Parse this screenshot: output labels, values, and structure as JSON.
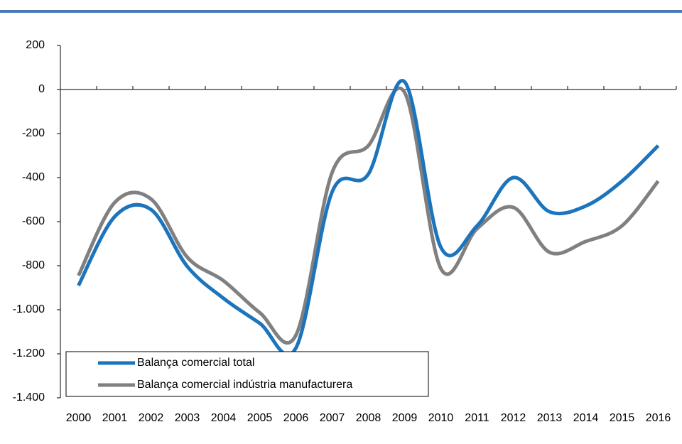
{
  "chart_data": {
    "type": "line",
    "categories": [
      "2000",
      "2001",
      "2002",
      "2003",
      "2004",
      "2005",
      "2006",
      "2007",
      "2008",
      "2009",
      "2010",
      "2011",
      "2012",
      "2013",
      "2014",
      "2015",
      "2016"
    ],
    "series": [
      {
        "name": "Balança comercial total",
        "color": "#1c75bc",
        "values": [
          -890,
          -577,
          -545,
          -803,
          -948,
          -1061,
          -1174,
          -465,
          -384,
          35,
          -716,
          -619,
          -400,
          -555,
          -529,
          -416,
          -255
        ]
      },
      {
        "name": "Balança comercial indústria manufacturera",
        "color": "#808080",
        "values": [
          -845,
          -513,
          -497,
          -761,
          -868,
          -1013,
          -1116,
          -377,
          -255,
          -13,
          -813,
          -632,
          -535,
          -739,
          -690,
          -619,
          -416
        ]
      }
    ],
    "ylim": [
      -1400,
      200
    ],
    "yticks": [
      200,
      0,
      -200,
      -400,
      -600,
      -800,
      {
        "value": -1000,
        "label": "-1.000"
      },
      {
        "value": -1200,
        "label": "-1.200"
      },
      {
        "value": -1400,
        "label": "-1.400"
      }
    ],
    "legend": "bottom-left"
  }
}
